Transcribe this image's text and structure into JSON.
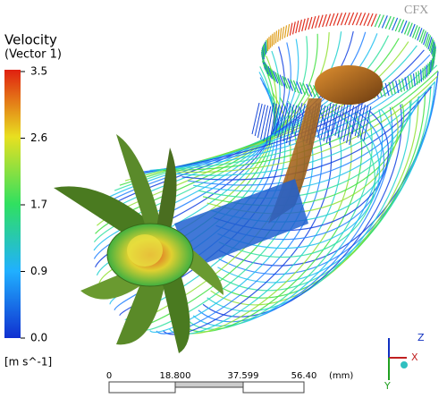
{
  "legend": {
    "title": "Velocity",
    "subtitle": "(Vector 1)",
    "ticks": [
      "3.5",
      "2.6",
      "1.7",
      "0.9",
      "0.0"
    ],
    "unit": "[m s^-1]"
  },
  "scale_bar": {
    "labels": [
      "0",
      "18.800",
      "37.599",
      "56.40"
    ],
    "unit": "(mm)"
  },
  "logo": "CFX",
  "axes": {
    "z": "Z",
    "x": "X",
    "y": "Y"
  }
}
